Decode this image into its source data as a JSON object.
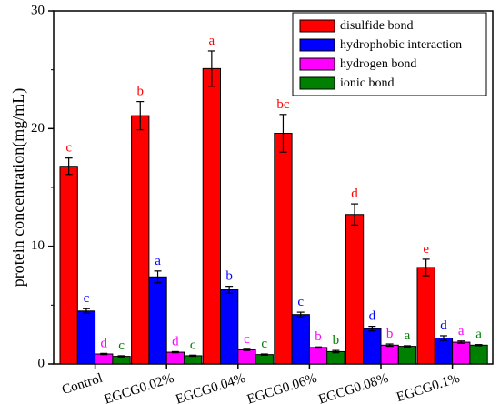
{
  "chart_data": {
    "type": "bar",
    "title": "",
    "xlabel": "",
    "ylabel": "protein concentration(mg/mL)",
    "ylim": [
      0,
      30
    ],
    "yticks": [
      0,
      10,
      20,
      30
    ],
    "grid": false,
    "legend_position": "top-right",
    "categories": [
      "Control",
      "EGCG0.02%",
      "EGCG0.04%",
      "EGCG0.06%",
      "EGCG0.08%",
      "EGCG0.1%"
    ],
    "series": [
      {
        "name": "disulfide bond",
        "color": "#ff0000",
        "values": [
          16.8,
          21.1,
          25.1,
          19.6,
          12.7,
          8.2
        ],
        "errors": [
          0.7,
          1.2,
          1.5,
          1.6,
          0.9,
          0.7
        ],
        "labels": [
          "c",
          "b",
          "a",
          "bc",
          "d",
          "e"
        ]
      },
      {
        "name": "hydrophobic interaction",
        "color": "#0000ff",
        "values": [
          4.5,
          7.4,
          6.3,
          4.2,
          3.0,
          2.2
        ],
        "errors": [
          0.2,
          0.5,
          0.3,
          0.2,
          0.2,
          0.2
        ],
        "labels": [
          "c",
          "a",
          "b",
          "c",
          "d",
          "d"
        ]
      },
      {
        "name": "hydrogen bond",
        "color": "#ff00ff",
        "values": [
          0.85,
          1.0,
          1.2,
          1.4,
          1.6,
          1.85
        ],
        "errors": [
          0.05,
          0.05,
          0.05,
          0.05,
          0.1,
          0.1
        ],
        "labels": [
          "d",
          "d",
          "c",
          "b",
          "b",
          "a"
        ]
      },
      {
        "name": "ionic bond",
        "color": "#008000",
        "values": [
          0.65,
          0.7,
          0.8,
          1.05,
          1.5,
          1.6
        ],
        "errors": [
          0.05,
          0.05,
          0.05,
          0.1,
          0.05,
          0.05
        ],
        "labels": [
          "c",
          "c",
          "c",
          "b",
          "a",
          "a"
        ]
      }
    ]
  }
}
